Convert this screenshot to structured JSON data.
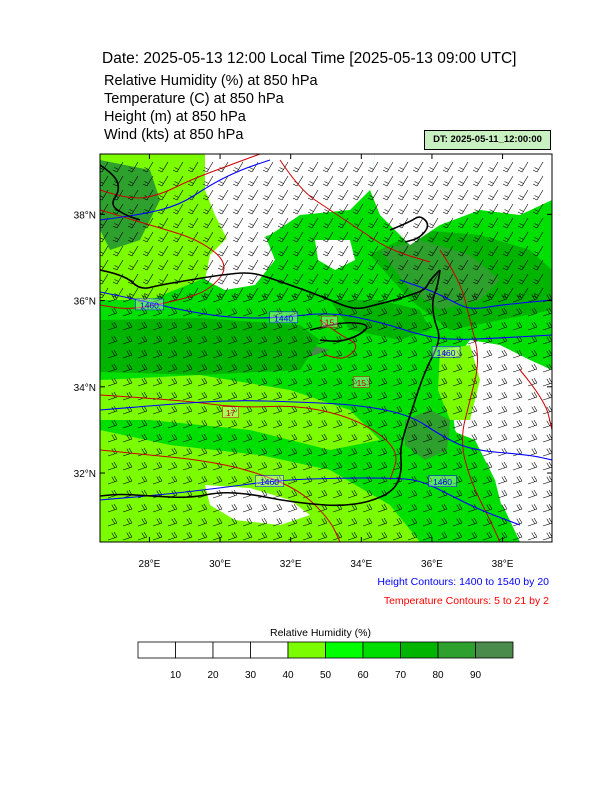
{
  "title": "Date: 2025-05-13  12:00 Local Time [2025-05-13  09:00 UTC]",
  "variables": [
    "Relative Humidity   (%)     at   850 hPa",
    "Temperature   (C)     at   850 hPa",
    "Height   (m)     at   850 hPa",
    "Wind   (kts)     at   850 hPa"
  ],
  "dt_label": "DT: 2025-05-11_12:00:00",
  "legend": {
    "height": "Height Contours: 1400 to 1540 by 20",
    "temperature": "Temperature Contours: 5 to 21 by 2"
  },
  "colorbar": {
    "title": "Relative Humidity   (%)",
    "ticks": [
      "10",
      "20",
      "30",
      "40",
      "50",
      "60",
      "70",
      "80",
      "90"
    ],
    "bin_colors": [
      "#ffffff",
      "#ffffff",
      "#ffffff",
      "#ffffff",
      "#7cfc00",
      "#00ff00",
      "#00dd00",
      "#00b400",
      "#2ea02e",
      "#4a8a4a"
    ]
  },
  "colors": {
    "height_contour": "#0000ff",
    "temperature_contour": "#cc0000",
    "coastline": "#000000"
  },
  "chart_data": {
    "type": "heatmap",
    "x_ticks": [
      "28°E",
      "30°E",
      "32°E",
      "34°E",
      "36°E",
      "38°E"
    ],
    "y_ticks": [
      "38°N",
      "36°N",
      "34°N",
      "32°N"
    ],
    "xlim": [
      26.6,
      39.4
    ],
    "ylim": [
      30.4,
      39.4
    ],
    "height_contour_labels": [
      {
        "text": "1460",
        "lon": 28.0,
        "lat": 35.9
      },
      {
        "text": "1440",
        "lon": 31.8,
        "lat": 35.6
      },
      {
        "text": "1460",
        "lon": 36.4,
        "lat": 34.8
      },
      {
        "text": "1460",
        "lon": 31.4,
        "lat": 31.8
      },
      {
        "text": "1460",
        "lon": 36.3,
        "lat": 31.8
      }
    ],
    "temperature_contour_labels": [
      {
        "text": "15",
        "lon": 33.1,
        "lat": 35.5
      },
      {
        "text": "17",
        "lon": 30.3,
        "lat": 33.4
      },
      {
        "text": "15",
        "lon": 34.0,
        "lat": 34.1
      }
    ],
    "rh_categories": [
      "10",
      "20",
      "30",
      "40",
      "50",
      "60",
      "70",
      "80",
      "90"
    ],
    "rh_grid_description": "relative humidity field 0-100%"
  }
}
